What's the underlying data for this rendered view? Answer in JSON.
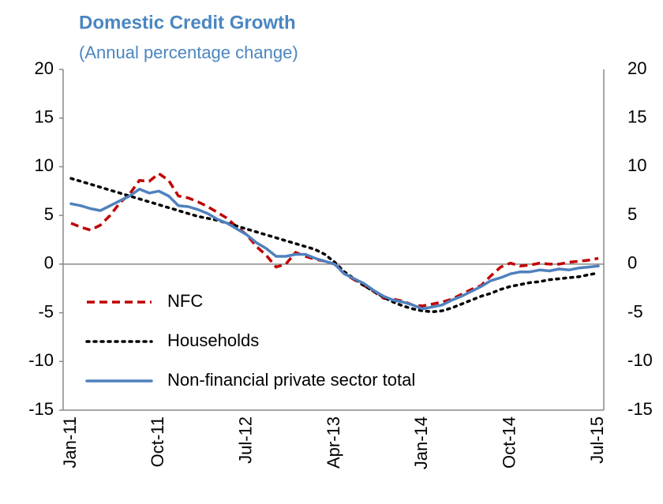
{
  "chart_data": {
    "type": "line",
    "title": "Domestic Credit Growth",
    "subtitle": "(Annual percentage change)",
    "categories": [
      "Jan-11",
      null,
      null,
      null,
      null,
      null,
      null,
      null,
      null,
      "Oct-11",
      null,
      null,
      null,
      null,
      null,
      null,
      null,
      null,
      "Jul-12",
      null,
      null,
      null,
      null,
      null,
      null,
      null,
      null,
      "Apr-13",
      null,
      null,
      null,
      null,
      null,
      null,
      null,
      null,
      "Jan-14",
      null,
      null,
      null,
      null,
      null,
      null,
      null,
      null,
      "Oct-14",
      null,
      null,
      null,
      null,
      null,
      null,
      null,
      null,
      "Jul-15"
    ],
    "series": [
      {
        "name": "NFC",
        "color": "#c00000",
        "style": "dashed",
        "values": [
          4.2,
          3.8,
          3.5,
          4.0,
          5.0,
          6.3,
          7.2,
          8.6,
          8.5,
          9.3,
          8.6,
          7.0,
          6.8,
          6.4,
          5.9,
          5.3,
          4.7,
          3.8,
          3.0,
          1.8,
          0.9,
          -0.3,
          0.0,
          1.2,
          0.8,
          0.5,
          0.3,
          0.0,
          -1.0,
          -1.6,
          -2.2,
          -2.8,
          -3.5,
          -3.6,
          -3.8,
          -4.2,
          -4.3,
          -4.1,
          -3.9,
          -3.6,
          -3.1,
          -2.6,
          -2.2,
          -1.2,
          -0.3,
          0.1,
          -0.2,
          -0.1,
          0.1,
          0.0,
          0.0,
          0.2,
          0.3,
          0.4,
          0.6
        ]
      },
      {
        "name": "Households",
        "color": "#000000",
        "style": "dotted",
        "values": [
          8.8,
          8.5,
          8.2,
          7.9,
          7.6,
          7.3,
          7.0,
          6.7,
          6.4,
          6.1,
          5.8,
          5.5,
          5.2,
          4.9,
          4.7,
          4.5,
          4.2,
          3.9,
          3.6,
          3.3,
          3.0,
          2.7,
          2.4,
          2.1,
          1.8,
          1.5,
          1.0,
          0.2,
          -0.8,
          -1.5,
          -2.2,
          -2.8,
          -3.4,
          -3.9,
          -4.3,
          -4.6,
          -4.8,
          -4.9,
          -4.8,
          -4.5,
          -4.1,
          -3.7,
          -3.3,
          -3.0,
          -2.6,
          -2.3,
          -2.1,
          -1.9,
          -1.8,
          -1.6,
          -1.5,
          -1.4,
          -1.3,
          -1.1,
          -0.9
        ]
      },
      {
        "name": "Non-financial private sector total",
        "color": "#4f81bd",
        "style": "solid",
        "values": [
          6.2,
          6.0,
          5.7,
          5.5,
          6.0,
          6.5,
          7.0,
          7.7,
          7.3,
          7.5,
          7.0,
          6.0,
          5.9,
          5.6,
          5.2,
          4.6,
          4.2,
          3.6,
          3.0,
          2.2,
          1.6,
          0.8,
          0.8,
          1.0,
          1.0,
          0.6,
          0.3,
          0.0,
          -1.0,
          -1.5,
          -2.0,
          -2.7,
          -3.3,
          -3.7,
          -3.9,
          -4.2,
          -4.6,
          -4.4,
          -4.2,
          -3.7,
          -3.3,
          -2.8,
          -2.3,
          -1.7,
          -1.4,
          -1.0,
          -0.8,
          -0.8,
          -0.6,
          -0.7,
          -0.5,
          -0.6,
          -0.4,
          -0.3,
          -0.2
        ]
      }
    ],
    "ylim": [
      -15,
      20
    ],
    "yticks": [
      -15,
      -10,
      -5,
      0,
      5,
      10,
      15,
      20
    ],
    "legend": "lower left",
    "grid": false
  }
}
